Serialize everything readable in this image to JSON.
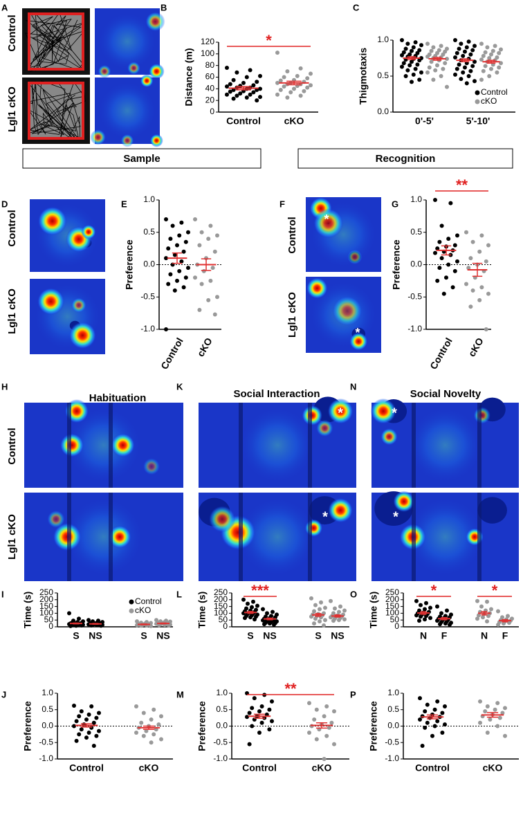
{
  "figure": {
    "A": {
      "letter": "A",
      "rows": [
        "Control",
        "Lgl1 cKO"
      ]
    },
    "D": {
      "letter": "D",
      "rows": [
        "Control",
        "Lgl1 cKO"
      ]
    },
    "F": {
      "letter": "F",
      "rows": [
        "Control",
        "Lgl1 cKO"
      ],
      "marks": [
        "*",
        "*"
      ]
    },
    "H": {
      "letter": "H",
      "title": "Habituation",
      "rows": [
        "Control",
        "Lgl1 cKO"
      ]
    },
    "K": {
      "letter": "K",
      "title": "Social Interaction",
      "marks": [
        "*",
        "*"
      ]
    },
    "N": {
      "letter": "N",
      "title": "Social Novelty",
      "marks": [
        "*",
        "*"
      ]
    },
    "sections": [
      "Sample",
      "Recognition"
    ]
  },
  "chart_data": [
    {
      "type": "dotplot",
      "panel": "B",
      "ylabel": "Distance (m)",
      "categories": [
        "Control",
        "cKO"
      ],
      "ylim": [
        0,
        120
      ],
      "yticks": [
        0,
        20,
        40,
        60,
        80,
        100,
        120
      ],
      "groups": [
        {
          "color": "#000000",
          "values": [
            76,
            72,
            68,
            62,
            60,
            55,
            52,
            50,
            48,
            46,
            45,
            44,
            42,
            42,
            40,
            40,
            38,
            38,
            36,
            35,
            34,
            32,
            30,
            30,
            28,
            26,
            25,
            23,
            20
          ],
          "mean": 41,
          "sem": 2.8
        },
        {
          "color": "#999999",
          "values": [
            102,
            75,
            70,
            66,
            62,
            60,
            58,
            55,
            54,
            52,
            50,
            50,
            48,
            48,
            46,
            45,
            44,
            42,
            40,
            38,
            36,
            34,
            30,
            28,
            25
          ],
          "mean": 50,
          "sem": 3
        }
      ],
      "brackets": [
        {
          "label": "*",
          "groups": [
            0,
            1
          ]
        }
      ]
    },
    {
      "type": "dotplot",
      "panel": "C",
      "ylabel": "Thigmotaxis",
      "categories": [
        "0'-5'",
        "5'-10'"
      ],
      "ylim": [
        0,
        1
      ],
      "yticks": [
        {
          "value": 0,
          "label": "0.0"
        },
        0.5,
        {
          "value": 1,
          "label": "1.0"
        }
      ],
      "legend": [
        {
          "name": "Control",
          "color": "#000000"
        },
        {
          "name": "cKO",
          "color": "#999999"
        }
      ],
      "groups": [
        {
          "color": "#000000",
          "values": [
            1.0,
            0.97,
            0.95,
            0.93,
            0.9,
            0.88,
            0.86,
            0.85,
            0.83,
            0.82,
            0.8,
            0.79,
            0.78,
            0.77,
            0.75,
            0.74,
            0.73,
            0.72,
            0.7,
            0.68,
            0.66,
            0.65,
            0.63,
            0.6,
            0.58,
            0.55,
            0.52,
            0.5,
            0.45,
            0.42
          ],
          "mean": 0.75,
          "sem": 0.02
        },
        {
          "color": "#999999",
          "values": [
            0.95,
            0.92,
            0.9,
            0.88,
            0.86,
            0.85,
            0.84,
            0.82,
            0.8,
            0.8,
            0.78,
            0.77,
            0.76,
            0.75,
            0.74,
            0.72,
            0.7,
            0.68,
            0.65,
            0.62,
            0.6,
            0.58,
            0.55,
            0.5,
            0.45,
            0.35
          ],
          "mean": 0.74,
          "sem": 0.02
        },
        {
          "color": "#000000",
          "values": [
            1.0,
            0.98,
            0.95,
            0.92,
            0.9,
            0.88,
            0.86,
            0.84,
            0.82,
            0.8,
            0.78,
            0.76,
            0.74,
            0.72,
            0.7,
            0.68,
            0.66,
            0.64,
            0.62,
            0.6,
            0.57,
            0.55,
            0.52,
            0.5,
            0.46,
            0.43,
            0.4
          ],
          "mean": 0.72,
          "sem": 0.02
        },
        {
          "color": "#999999",
          "values": [
            0.95,
            0.92,
            0.9,
            0.87,
            0.85,
            0.83,
            0.82,
            0.8,
            0.78,
            0.76,
            0.75,
            0.73,
            0.72,
            0.7,
            0.68,
            0.66,
            0.64,
            0.62,
            0.6,
            0.57,
            0.55,
            0.5,
            0.45
          ],
          "mean": 0.7,
          "sem": 0.02
        }
      ]
    },
    {
      "type": "dotplot",
      "panel": "E",
      "ylabel": "Preference",
      "categories": [
        "Control",
        "cKO"
      ],
      "ylim": [
        -1,
        1
      ],
      "refline": 0,
      "yticks": [
        {
          "value": -1,
          "label": "-1.0"
        },
        {
          "value": -0.5,
          "label": "-0.5"
        },
        {
          "value": 0,
          "label": "0.0"
        },
        0.5,
        {
          "value": 1,
          "label": "1.0"
        }
      ],
      "groups": [
        {
          "color": "#000000",
          "values": [
            0.7,
            0.65,
            0.6,
            0.5,
            0.45,
            0.4,
            0.35,
            0.3,
            0.25,
            0.2,
            0.15,
            0.1,
            0.05,
            0,
            -0.05,
            -0.1,
            -0.15,
            -0.2,
            -0.25,
            -0.3,
            -0.35,
            -0.4,
            -1.0
          ],
          "mean": 0.1,
          "sem": 0.08
        },
        {
          "color": "#999999",
          "values": [
            0.7,
            0.6,
            0.5,
            0.45,
            0.4,
            0.3,
            0.2,
            0.1,
            0,
            -0.05,
            -0.1,
            -0.2,
            -0.25,
            -0.3,
            -0.5,
            -0.55,
            -0.7,
            -0.77
          ],
          "mean": 0,
          "sem": 0.09
        }
      ]
    },
    {
      "type": "dotplot",
      "panel": "G",
      "ylabel": "Preference",
      "categories": [
        "Control",
        "cKO"
      ],
      "ylim": [
        -1,
        1
      ],
      "refline": 0,
      "yticks": [
        {
          "value": -1,
          "label": "-1.0"
        },
        {
          "value": -0.5,
          "label": "-0.5"
        },
        {
          "value": 0,
          "label": "0.0"
        },
        0.5,
        {
          "value": 1,
          "label": "1.0"
        }
      ],
      "groups": [
        {
          "color": "#000000",
          "values": [
            1.0,
            0.95,
            0.6,
            0.45,
            0.4,
            0.35,
            0.3,
            0.28,
            0.25,
            0.22,
            0.2,
            0.18,
            0.15,
            0.1,
            0.05,
            0,
            -0.05,
            -0.1,
            -0.2,
            -0.25,
            -0.35,
            -0.45
          ],
          "mean": 0.22,
          "sem": 0.07
        },
        {
          "color": "#999999",
          "values": [
            0.5,
            0.45,
            0.35,
            0.3,
            0.2,
            0.1,
            0.05,
            0,
            -0.05,
            -0.1,
            -0.2,
            -0.3,
            -0.35,
            -0.4,
            -0.45,
            -0.55,
            -0.65,
            -1.0
          ],
          "mean": -0.08,
          "sem": 0.1
        }
      ],
      "brackets": [
        {
          "label": "**",
          "groups": [
            0,
            1
          ]
        }
      ]
    },
    {
      "type": "dotplot",
      "panel": "I",
      "ylabel": "Time (s)",
      "categories": [
        "S",
        "NS",
        "S",
        "NS"
      ],
      "ylim": [
        0,
        250
      ],
      "yticks": [
        0,
        50,
        100,
        150,
        200,
        250
      ],
      "legend": [
        {
          "name": "Control",
          "color": "#000000"
        },
        {
          "name": "cKO",
          "color": "#999999"
        }
      ],
      "groups": [
        {
          "color": "#000000",
          "values": [
            100,
            60,
            45,
            40,
            35,
            30,
            28,
            26,
            25,
            24,
            22,
            20,
            18,
            16,
            15,
            14,
            12,
            10,
            8,
            6
          ],
          "mean": 25,
          "sem": 3
        },
        {
          "color": "#000000",
          "values": [
            50,
            45,
            40,
            35,
            30,
            28,
            26,
            25,
            24,
            22,
            20,
            18,
            16,
            15,
            14,
            12,
            10,
            8
          ],
          "mean": 22,
          "sem": 3
        },
        {
          "color": "#999999",
          "values": [
            40,
            35,
            30,
            28,
            25,
            22,
            20,
            18,
            16,
            15,
            14,
            12,
            10,
            8,
            6
          ],
          "mean": 18,
          "sem": 3
        },
        {
          "color": "#999999",
          "values": [
            50,
            45,
            40,
            38,
            35,
            32,
            30,
            28,
            26,
            25,
            24,
            22,
            20,
            18,
            16,
            14,
            12,
            10
          ],
          "mean": 25,
          "sem": 3
        }
      ]
    },
    {
      "type": "dotplot",
      "panel": "L",
      "ylabel": "Time (s)",
      "categories": [
        "S",
        "NS",
        "S",
        "NS"
      ],
      "ylim": [
        0,
        250
      ],
      "yticks": [
        0,
        50,
        100,
        150,
        200,
        250
      ],
      "groups": [
        {
          "color": "#000000",
          "values": [
            200,
            185,
            170,
            155,
            145,
            135,
            125,
            120,
            115,
            110,
            105,
            100,
            98,
            95,
            90,
            85,
            80,
            75,
            70,
            65,
            55
          ],
          "mean": 106,
          "sem": 7
        },
        {
          "color": "#000000",
          "values": [
            130,
            110,
            100,
            90,
            80,
            75,
            70,
            65,
            60,
            55,
            50,
            48,
            45,
            42,
            40,
            35,
            30,
            28,
            25,
            20,
            15
          ],
          "mean": 58,
          "sem": 6
        },
        {
          "color": "#999999",
          "values": [
            210,
            180,
            160,
            140,
            130,
            115,
            100,
            95,
            90,
            85,
            80,
            75,
            70,
            60,
            50,
            40,
            25,
            10
          ],
          "mean": 88,
          "sem": 10
        },
        {
          "color": "#999999",
          "values": [
            190,
            150,
            135,
            120,
            110,
            100,
            90,
            85,
            80,
            78,
            75,
            70,
            65,
            60,
            55,
            50,
            45
          ],
          "mean": 80,
          "sem": 8
        }
      ],
      "brackets": [
        {
          "label": "***",
          "groups": [
            0,
            1
          ]
        }
      ]
    },
    {
      "type": "dotplot",
      "panel": "O",
      "ylabel": "Time (s)",
      "categories": [
        "N",
        "F",
        "N",
        "F"
      ],
      "ylim": [
        0,
        250
      ],
      "yticks": [
        0,
        50,
        100,
        150,
        200,
        250
      ],
      "groups": [
        {
          "color": "#000000",
          "values": [
            190,
            175,
            160,
            140,
            130,
            120,
            110,
            105,
            100,
            95,
            90,
            85,
            80,
            75,
            65,
            55,
            45
          ],
          "mean": 102,
          "sem": 10
        },
        {
          "color": "#000000",
          "values": [
            150,
            120,
            100,
            90,
            80,
            75,
            70,
            65,
            60,
            55,
            50,
            45,
            40,
            35,
            30,
            25,
            20,
            15
          ],
          "mean": 60,
          "sem": 8
        },
        {
          "color": "#999999",
          "values": [
            190,
            185,
            150,
            130,
            120,
            110,
            100,
            95,
            85,
            80,
            70,
            60,
            40
          ],
          "mean": 100,
          "sem": 12
        },
        {
          "color": "#999999",
          "values": [
            115,
            80,
            70,
            60,
            55,
            50,
            45,
            40,
            35,
            30,
            25,
            15
          ],
          "mean": 45,
          "sem": 8
        }
      ],
      "brackets": [
        {
          "label": "*",
          "groups": [
            0,
            1
          ]
        },
        {
          "label": "*",
          "groups": [
            2,
            3
          ]
        }
      ]
    },
    {
      "type": "dotplot",
      "panel": "J",
      "ylabel": "Preference",
      "categories": [
        "Control",
        "cKO"
      ],
      "ylim": [
        -1,
        1
      ],
      "refline": 0,
      "yticks": [
        {
          "value": -1,
          "label": "-1.0"
        },
        {
          "value": -0.5,
          "label": "-0.5"
        },
        {
          "value": 0,
          "label": "0.0"
        },
        0.5,
        {
          "value": 1,
          "label": "1.0"
        }
      ],
      "groups": [
        {
          "color": "#000000",
          "values": [
            0.62,
            0.6,
            0.45,
            0.4,
            0.35,
            0.3,
            0.25,
            0.2,
            0.15,
            0.1,
            0.05,
            0,
            -0.05,
            -0.1,
            -0.15,
            -0.2,
            -0.25,
            -0.3,
            -0.35,
            -0.45,
            -0.6
          ],
          "mean": 0.02,
          "sem": 0.05
        },
        {
          "color": "#999999",
          "values": [
            0.6,
            0.5,
            0.4,
            0.3,
            0.2,
            0.1,
            0.05,
            0,
            -0.05,
            -0.1,
            -0.15,
            -0.2,
            -0.25,
            -0.3,
            -0.4,
            -0.5
          ],
          "mean": -0.05,
          "sem": 0.05
        }
      ]
    },
    {
      "type": "dotplot",
      "panel": "M",
      "ylabel": "Preference",
      "categories": [
        "Control",
        "cKO"
      ],
      "ylim": [
        -1,
        1
      ],
      "refline": 0,
      "yticks": [
        {
          "value": -1,
          "label": "-1.0"
        },
        {
          "value": -0.5,
          "label": "-0.5"
        },
        {
          "value": 0,
          "label": "0.0"
        },
        0.5,
        {
          "value": 1,
          "label": "1.0"
        }
      ],
      "groups": [
        {
          "color": "#000000",
          "values": [
            1.0,
            0.95,
            0.85,
            0.75,
            0.6,
            0.55,
            0.5,
            0.45,
            0.4,
            0.35,
            0.3,
            0.28,
            0.25,
            0.2,
            0.15,
            0.1,
            0,
            -0.1,
            -0.2,
            -0.55
          ],
          "mean": 0.3,
          "sem": 0.06
        },
        {
          "color": "#999999",
          "values": [
            0.7,
            0.6,
            0.5,
            0.45,
            0.3,
            0.2,
            0.1,
            0.05,
            0,
            -0.05,
            -0.1,
            -0.2,
            -0.3,
            -0.4,
            -0.55,
            -1.0
          ],
          "mean": 0.02,
          "sem": 0.08
        }
      ],
      "brackets": [
        {
          "label": "**",
          "groups": [
            0,
            1
          ]
        }
      ]
    },
    {
      "type": "dotplot",
      "panel": "P",
      "ylabel": "Preference",
      "categories": [
        "Control",
        "cKO"
      ],
      "ylim": [
        -1,
        1
      ],
      "refline": 0,
      "yticks": [
        {
          "value": -1,
          "label": "-1.0"
        },
        {
          "value": -0.5,
          "label": "-0.5"
        },
        {
          "value": 0,
          "label": "0.0"
        },
        0.5,
        {
          "value": 1,
          "label": "1.0"
        }
      ],
      "groups": [
        {
          "color": "#000000",
          "values": [
            0.85,
            0.75,
            0.65,
            0.6,
            0.5,
            0.45,
            0.4,
            0.35,
            0.3,
            0.28,
            0.25,
            0.2,
            0.15,
            0.1,
            0.05,
            0,
            -0.05,
            -0.2,
            -0.3,
            -0.6
          ],
          "mean": 0.28,
          "sem": 0.06
        },
        {
          "color": "#999999",
          "values": [
            0.75,
            0.7,
            0.6,
            0.55,
            0.5,
            0.45,
            0.4,
            0.35,
            0.3,
            0.25,
            0.2,
            0.1,
            0,
            -0.2,
            -0.3
          ],
          "mean": 0.34,
          "sem": 0.07
        }
      ]
    }
  ]
}
